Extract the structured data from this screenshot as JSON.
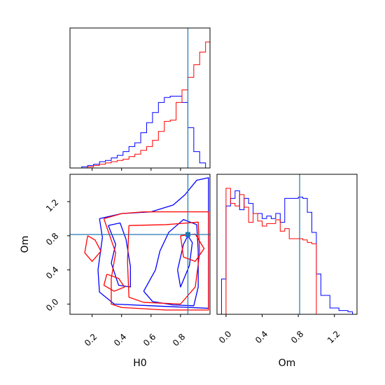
{
  "chart_data": {
    "type": "corner",
    "parameters": [
      "H0",
      "Om"
    ],
    "truths": {
      "H0": 0.85,
      "Om": 0.815
    },
    "colors": {
      "series_a": "#0000ff",
      "series_b": "#ff0000",
      "truth": "#1f77b4"
    },
    "panels": {
      "hist_H0": {
        "xlim": [
          0.05,
          1.0
        ],
        "tick_values": [
          0.2,
          0.4,
          0.6,
          0.8
        ],
        "edges": [
          0.05,
          0.09,
          0.13,
          0.17,
          0.21,
          0.25,
          0.29,
          0.33,
          0.37,
          0.41,
          0.45,
          0.49,
          0.53,
          0.57,
          0.61,
          0.65,
          0.69,
          0.73,
          0.77,
          0.81,
          0.85,
          0.89,
          0.93,
          0.97,
          1.0
        ],
        "series": [
          {
            "color": "#0000ff",
            "counts": [
              0,
              0,
              0.01,
              0.02,
              0.03,
              0.05,
              0.06,
              0.08,
              0.1,
              0.13,
              0.17,
              0.2,
              0.28,
              0.36,
              0.44,
              0.52,
              0.56,
              0.57,
              0.57,
              0.52,
              0.32,
              0.13,
              0.04,
              0
            ]
          },
          {
            "color": "#ff0000",
            "counts": [
              0,
              0,
              0,
              0.01,
              0.02,
              0.03,
              0.04,
              0.05,
              0.06,
              0.07,
              0.09,
              0.11,
              0.14,
              0.17,
              0.22,
              0.29,
              0.37,
              0.38,
              0.52,
              0.62,
              0.72,
              0.82,
              0.92,
              1.0
            ]
          }
        ]
      },
      "hist_Om": {
        "xlim": [
          -0.1,
          1.45
        ],
        "tick_values": [
          0.0,
          0.4,
          0.8,
          1.2
        ],
        "edges": [
          -0.05,
          0.0,
          0.05,
          0.1,
          0.15,
          0.2,
          0.25,
          0.3,
          0.35,
          0.4,
          0.45,
          0.5,
          0.55,
          0.6,
          0.65,
          0.7,
          0.75,
          0.8,
          0.85,
          0.9,
          0.95,
          1.0,
          1.05,
          1.1,
          1.15,
          1.2,
          1.25,
          1.3,
          1.35,
          1.4
        ],
        "series": [
          {
            "color": "#0000ff",
            "counts": [
              0.28,
              0.86,
              0.92,
              0.98,
              0.83,
              0.92,
              0.88,
              0.8,
              0.8,
              0.76,
              0.78,
              0.76,
              0.8,
              0.73,
              0.92,
              0.92,
              0.92,
              0.93,
              0.92,
              0.81,
              0.65,
              0.32,
              0.15,
              0.15,
              0.05,
              0.05,
              0.03,
              0.03,
              0.02
            ]
          },
          {
            "color": "#ff0000",
            "counts": [
              0,
              1.0,
              0.88,
              0.86,
              0.95,
              0.85,
              0.73,
              0.8,
              0.74,
              0.7,
              0.72,
              0.72,
              0.75,
              0.66,
              0.68,
              0.6,
              0.6,
              0.6,
              0.59,
              0.57,
              0.56,
              0,
              0,
              0,
              0,
              0,
              0,
              0,
              0
            ]
          }
        ]
      },
      "joint": {
        "xlim": [
          0.05,
          1.0
        ],
        "ylim": [
          -0.12,
          1.52
        ],
        "x_tick_values": [
          0.2,
          0.4,
          0.6,
          0.8
        ],
        "y_tick_values": [
          0.0,
          0.4,
          0.8,
          1.2
        ],
        "contours": [
          {
            "color": "#0000ff",
            "points": [
              [
                0.25,
                1.0
              ],
              [
                0.4,
                1.06
              ],
              [
                0.6,
                1.08
              ],
              [
                0.75,
                1.16
              ],
              [
                0.83,
                1.28
              ],
              [
                0.91,
                1.45
              ],
              [
                0.99,
                1.48
              ],
              [
                0.99,
                -0.05
              ],
              [
                0.6,
                -0.02
              ],
              [
                0.35,
                0.0
              ],
              [
                0.25,
                0.14
              ],
              [
                0.24,
                0.4
              ],
              [
                0.27,
                0.78
              ],
              [
                0.25,
                1.0
              ]
            ]
          },
          {
            "color": "#0000ff",
            "points": [
              [
                0.55,
                0.15
              ],
              [
                0.63,
                0.4
              ],
              [
                0.66,
                0.62
              ],
              [
                0.72,
                0.84
              ],
              [
                0.82,
                0.99
              ],
              [
                0.91,
                0.93
              ],
              [
                0.92,
                0.62
              ],
              [
                0.92,
                0.2
              ],
              [
                0.89,
                -0.02
              ],
              [
                0.75,
                -0.01
              ],
              [
                0.61,
                0.03
              ],
              [
                0.55,
                0.15
              ]
            ]
          },
          {
            "color": "#0000ff",
            "points": [
              [
                0.31,
                0.92
              ],
              [
                0.36,
                0.7
              ],
              [
                0.33,
                0.48
              ],
              [
                0.38,
                0.22
              ],
              [
                0.46,
                0.2
              ],
              [
                0.46,
                0.44
              ],
              [
                0.43,
                0.76
              ],
              [
                0.39,
                0.95
              ],
              [
                0.31,
                0.92
              ]
            ]
          },
          {
            "color": "#0000ff",
            "points": [
              [
                0.78,
                0.4
              ],
              [
                0.82,
                0.7
              ],
              [
                0.85,
                0.8
              ],
              [
                0.88,
                0.72
              ],
              [
                0.86,
                0.45
              ],
              [
                0.8,
                0.2
              ],
              [
                0.78,
                0.4
              ]
            ]
          },
          {
            "color": "#ff0000",
            "points": [
              [
                0.28,
                1.0
              ],
              [
                0.4,
                1.06
              ],
              [
                0.55,
                1.08
              ],
              [
                0.75,
                1.08
              ],
              [
                0.99,
                1.08
              ],
              [
                0.99,
                -0.07
              ],
              [
                0.7,
                -0.07
              ],
              [
                0.4,
                -0.04
              ],
              [
                0.33,
                0.0
              ],
              [
                0.33,
                0.3
              ],
              [
                0.36,
                0.6
              ],
              [
                0.3,
                0.9
              ],
              [
                0.28,
                1.0
              ]
            ]
          },
          {
            "color": "#ff0000",
            "points": [
              [
                0.45,
                0.92
              ],
              [
                0.7,
                0.93
              ],
              [
                0.92,
                0.96
              ],
              [
                0.93,
                0.6
              ],
              [
                0.9,
                0.2
              ],
              [
                0.8,
                0.0
              ],
              [
                0.55,
                0.02
              ],
              [
                0.45,
                0.08
              ],
              [
                0.44,
                0.5
              ],
              [
                0.45,
                0.92
              ]
            ]
          },
          {
            "color": "#ff0000",
            "points": [
              [
                0.17,
                0.8
              ],
              [
                0.22,
                0.75
              ],
              [
                0.26,
                0.62
              ],
              [
                0.2,
                0.5
              ],
              [
                0.15,
                0.6
              ],
              [
                0.17,
                0.8
              ]
            ]
          },
          {
            "color": "#ff0000",
            "points": [
              [
                0.3,
                0.35
              ],
              [
                0.38,
                0.3
              ],
              [
                0.42,
                0.2
              ],
              [
                0.35,
                0.15
              ],
              [
                0.28,
                0.22
              ],
              [
                0.3,
                0.35
              ]
            ]
          },
          {
            "color": "#ff0000",
            "points": [
              [
                0.8,
                0.8
              ],
              [
                0.9,
                0.82
              ],
              [
                0.96,
                0.65
              ],
              [
                0.9,
                0.5
              ],
              [
                0.82,
                0.55
              ],
              [
                0.8,
                0.8
              ]
            ]
          }
        ]
      }
    }
  },
  "labels": {
    "x_H0": "H0",
    "x_Om": "Om",
    "y_Om": "Om",
    "h0_ticks": [
      "0.2",
      "0.4",
      "0.6",
      "0.8"
    ],
    "om_y_ticks": [
      "0.0",
      "0.4",
      "0.8",
      "1.2"
    ],
    "om_x_ticks": [
      "0.0",
      "0.4",
      "0.8",
      "1.2"
    ]
  }
}
